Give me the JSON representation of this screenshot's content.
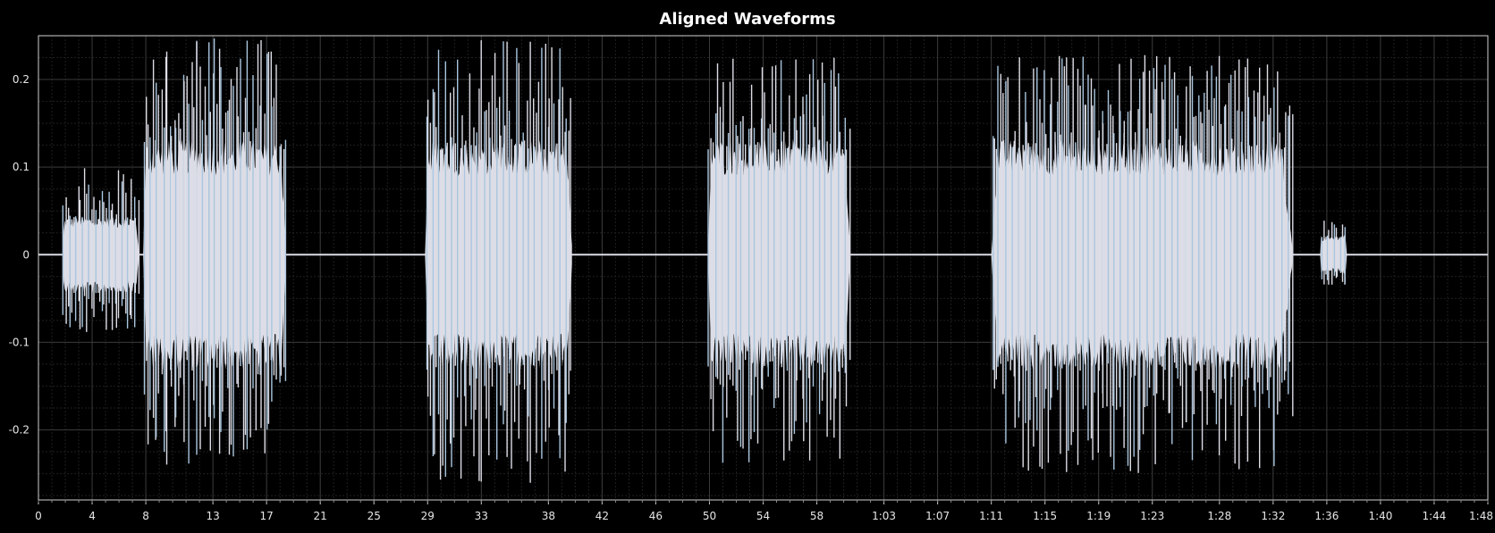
{
  "chart_data": {
    "type": "area",
    "title": "Aligned Waveforms",
    "xlabel": "",
    "ylabel": "",
    "xlim_seconds": [
      0,
      108
    ],
    "ylim": [
      -0.28,
      0.25
    ],
    "grid": true,
    "x_tick_labels": [
      "0",
      "4",
      "8",
      "13",
      "17",
      "21",
      "25",
      "29",
      "33",
      "38",
      "42",
      "46",
      "50",
      "54",
      "58",
      "1:03",
      "1:07",
      "1:11",
      "1:15",
      "1:19",
      "1:23",
      "1:28",
      "1:32",
      "1:36",
      "1:40",
      "1:44",
      "1:48"
    ],
    "x_tick_seconds": [
      0,
      4,
      8,
      13,
      17,
      21,
      25,
      29,
      33,
      38,
      42,
      46,
      50,
      54,
      58,
      63,
      67,
      71,
      75,
      79,
      83,
      88,
      92,
      96,
      100,
      104,
      108
    ],
    "y_ticks": [
      0.2,
      0.1,
      0,
      -0.1,
      -0.2
    ],
    "y_tick_labels": [
      "0.2",
      "0.1",
      "0",
      "-0.1",
      "-0.2"
    ],
    "colors": {
      "background": "#000000",
      "fill": "#dcdde6",
      "spikes": "#aac6de",
      "axis": "#cfcfcf"
    },
    "series": [
      {
        "segments": [
          {
            "start": 1.8,
            "end": 7.5,
            "peak_pos": 0.1,
            "peak_neg": -0.09,
            "body": 0.04
          },
          {
            "start": 7.8,
            "end": 18.5,
            "peak_pos": 0.25,
            "peak_neg": -0.24,
            "body": 0.12
          },
          {
            "start": 28.8,
            "end": 39.8,
            "peak_pos": 0.25,
            "peak_neg": -0.27,
            "body": 0.12
          },
          {
            "start": 49.9,
            "end": 60.5,
            "peak_pos": 0.23,
            "peak_neg": -0.24,
            "body": 0.12
          },
          {
            "start": 71.0,
            "end": 93.5,
            "peak_pos": 0.23,
            "peak_neg": -0.25,
            "body": 0.12
          },
          {
            "start": 95.5,
            "end": 97.5,
            "peak_pos": 0.045,
            "peak_neg": -0.035,
            "body": 0.02
          }
        ]
      }
    ]
  }
}
